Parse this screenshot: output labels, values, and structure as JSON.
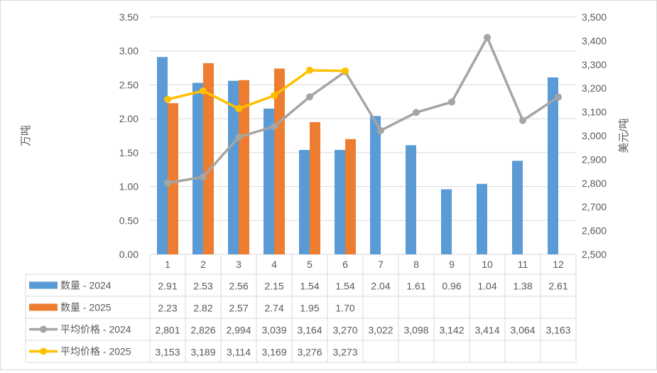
{
  "chart_data": {
    "type": "bar",
    "categories": [
      "1",
      "2",
      "3",
      "4",
      "5",
      "6",
      "7",
      "8",
      "9",
      "10",
      "11",
      "12"
    ],
    "series": [
      {
        "name": "数量 - 2024",
        "type": "bar",
        "axis": "left",
        "color": "#5B9BD5",
        "values": [
          2.91,
          2.53,
          2.56,
          2.15,
          1.54,
          1.54,
          2.04,
          1.61,
          0.96,
          1.04,
          1.38,
          2.61
        ],
        "labels": [
          "2.91",
          "2.53",
          "2.56",
          "2.15",
          "1.54",
          "1.54",
          "2.04",
          "1.61",
          "0.96",
          "1.04",
          "1.38",
          "2.61"
        ]
      },
      {
        "name": "数量 - 2025",
        "type": "bar",
        "axis": "left",
        "color": "#ED7D31",
        "values": [
          2.23,
          2.82,
          2.57,
          2.74,
          1.95,
          1.7,
          null,
          null,
          null,
          null,
          null,
          null
        ],
        "labels": [
          "2.23",
          "2.82",
          "2.57",
          "2.74",
          "1.95",
          "1.70",
          "",
          "",
          "",
          "",
          "",
          ""
        ]
      },
      {
        "name": "平均价格 - 2024",
        "type": "line",
        "axis": "right",
        "color": "#A5A5A5",
        "values": [
          2801,
          2826,
          2994,
          3039,
          3164,
          3270,
          3022,
          3098,
          3142,
          3414,
          3064,
          3163
        ],
        "labels": [
          "2,801",
          "2,826",
          "2,994",
          "3,039",
          "3,164",
          "3,270",
          "3,022",
          "3,098",
          "3,142",
          "3,414",
          "3,064",
          "3,163"
        ]
      },
      {
        "name": "平均价格 - 2025",
        "type": "line",
        "axis": "right",
        "color": "#FFC000",
        "values": [
          3153,
          3189,
          3114,
          3169,
          3276,
          3273,
          null,
          null,
          null,
          null,
          null,
          null
        ],
        "labels": [
          "3,153",
          "3,189",
          "3,114",
          "3,169",
          "3,276",
          "3,273",
          "",
          "",
          "",
          "",
          "",
          ""
        ]
      }
    ],
    "ylabel": "万吨",
    "y2label": "美元/吨",
    "ylim": [
      0,
      3.5
    ],
    "y2lim": [
      2500,
      3500
    ],
    "yticks": [
      "0.00",
      "0.50",
      "1.00",
      "1.50",
      "2.00",
      "2.50",
      "3.00",
      "3.50"
    ],
    "y2ticks": [
      "2,500",
      "2,600",
      "2,700",
      "2,800",
      "2,900",
      "3,000",
      "3,100",
      "3,200",
      "3,300",
      "3,400",
      "3,500"
    ],
    "grid": true,
    "legend": "data-table"
  }
}
